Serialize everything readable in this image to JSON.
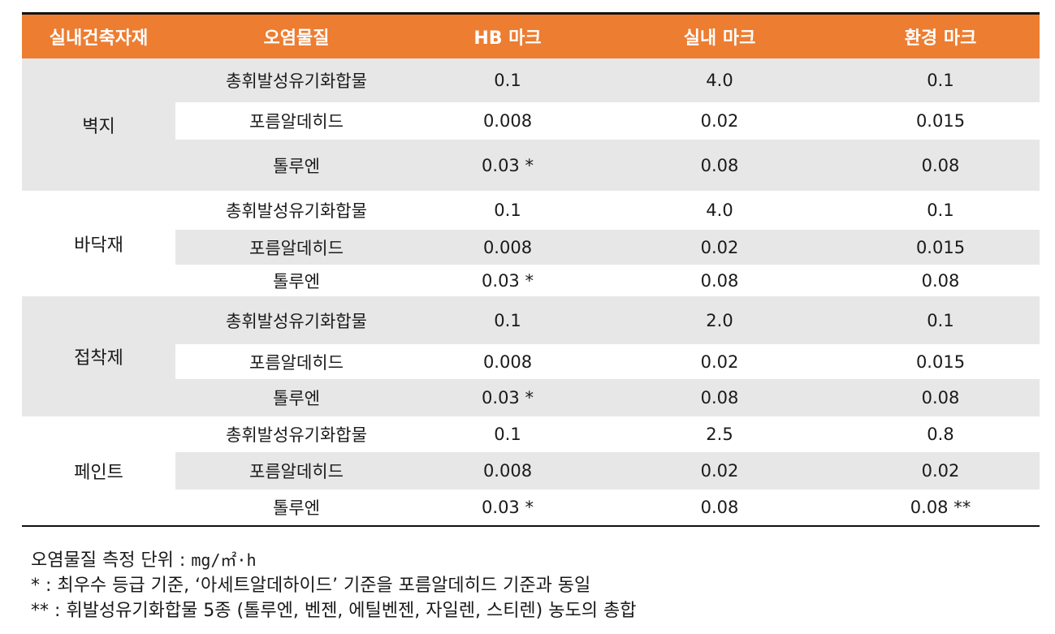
{
  "header": [
    "실내건축자재",
    "오염물질",
    "HB 마크",
    "실내 마크",
    "환경 마크"
  ],
  "groups": [
    {
      "material": "벽지",
      "rows": [
        {
          "pollutant": "총휘발성유기화합물",
          "hb": "0.1",
          "indoor": "4.0",
          "env": "0.1"
        },
        {
          "pollutant": "포름알데히드",
          "hb": "0.008",
          "indoor": "0.02",
          "env": "0.015"
        },
        {
          "pollutant": "톨루엔",
          "hb": "0.03 *",
          "indoor": "0.08",
          "env": "0.08"
        }
      ]
    },
    {
      "material": "바닥재",
      "rows": [
        {
          "pollutant": "총휘발성유기화합물",
          "hb": "0.1",
          "indoor": "4.0",
          "env": "0.1"
        },
        {
          "pollutant": "포름알데히드",
          "hb": "0.008",
          "indoor": "0.02",
          "env": "0.015"
        },
        {
          "pollutant": "톨루엔",
          "hb": "0.03 *",
          "indoor": "0.08",
          "env": "0.08"
        }
      ]
    },
    {
      "material": "접착제",
      "rows": [
        {
          "pollutant": "총휘발성유기화합물",
          "hb": "0.1",
          "indoor": "2.0",
          "env": "0.1"
        },
        {
          "pollutant": "포름알데히드",
          "hb": "0.008",
          "indoor": "0.02",
          "env": "0.015"
        },
        {
          "pollutant": "톨루엔",
          "hb": "0.03 *",
          "indoor": "0.08",
          "env": "0.08"
        }
      ]
    },
    {
      "material": "페인트",
      "rows": [
        {
          "pollutant": "총휘발성유기화합물",
          "hb": "0.1",
          "indoor": "2.5",
          "env": "0.8"
        },
        {
          "pollutant": "포름알데히드",
          "hb": "0.008",
          "indoor": "0.02",
          "env": "0.02"
        },
        {
          "pollutant": "톨루엔",
          "hb": "0.03 *",
          "indoor": "0.08",
          "env": "0.08 **"
        }
      ]
    }
  ],
  "notes": {
    "unit_label": "오염물질 측정 단위 : ",
    "unit_value": "mg/㎡·h",
    "note1": "*  : 최우수 등급 기준, ‘아세트알데하이드’ 기준을 포름알데히드 기준과 동일",
    "note2": "** : 휘발성유기화합물 5종 (톨루엔, 벤젠, 에틸벤젠, 자일렌, 스티렌) 농도의 총합"
  },
  "colors": {
    "header_bg": "#ed7d31",
    "shade": "#e7e7e7"
  }
}
